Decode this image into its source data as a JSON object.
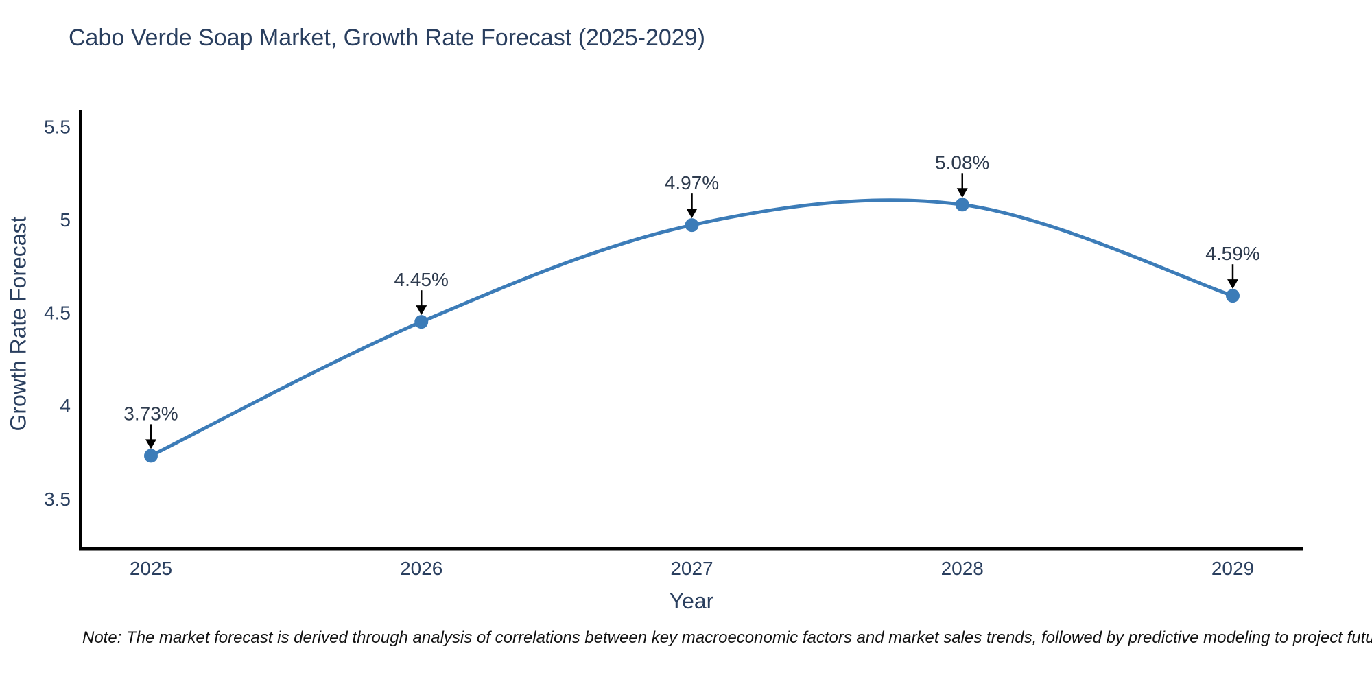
{
  "title": "Cabo Verde Soap Market, Growth Rate Forecast (2025-2029)",
  "note": "Note: The market forecast is derived through analysis of correlations between key macroeconomic factors and market sales trends, followed by predictive modeling to project future sales",
  "chart_data": {
    "type": "line",
    "title": "Cabo Verde Soap Market, Growth Rate Forecast (2025-2029)",
    "xlabel": "Year",
    "ylabel": "Growth Rate Forecast",
    "x": [
      2025,
      2026,
      2027,
      2028,
      2029
    ],
    "xtick_labels": [
      "2025",
      "2026",
      "2027",
      "2028",
      "2029"
    ],
    "series": [
      {
        "name": "Growth Rate Forecast",
        "values": [
          3.73,
          4.45,
          4.97,
          5.08,
          4.59
        ],
        "point_labels": [
          "3.73%",
          "4.45%",
          "4.97%",
          "5.08%",
          "4.59%"
        ]
      }
    ],
    "ylim": [
      3.23,
      5.59
    ],
    "ytick_values": [
      3.5,
      4,
      4.5,
      5,
      5.5
    ],
    "ytick_labels": [
      "3.5",
      "4",
      "4.5",
      "5",
      "5.5"
    ],
    "grid": false,
    "legend": false,
    "line_shape": "spline",
    "annotation_style": "label-above-with-down-arrow",
    "colors": {
      "line": "#3c7cb8",
      "marker": "#3c7cb8",
      "axis": "#000000",
      "tick_text": "#2a3f5f",
      "title_text": "#2a3f5f",
      "annotation_text": "#2e3b4e",
      "annotation_arrow": "#000000",
      "background": "#ffffff"
    }
  }
}
